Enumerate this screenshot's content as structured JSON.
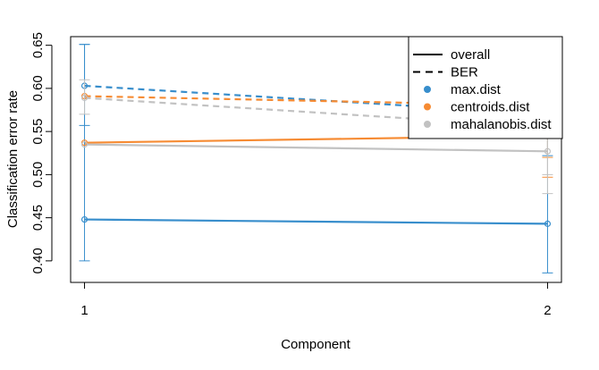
{
  "chart_data": {
    "type": "line",
    "title": "",
    "xlabel": "Component",
    "ylabel": "Classification error rate",
    "x": [
      1,
      2
    ],
    "xticks": [
      "1",
      "2"
    ],
    "xlim": [
      0.97,
      2.03
    ],
    "ylim": [
      0.375,
      0.66
    ],
    "yticks": [
      "0.40",
      "0.45",
      "0.50",
      "0.55",
      "0.60",
      "0.65"
    ],
    "yticks_values": [
      0.4,
      0.45,
      0.5,
      0.55,
      0.6,
      0.65
    ],
    "grid": false,
    "legend_position": "top-right",
    "legend": [
      {
        "label": "overall",
        "kind": "line-solid",
        "color": "#000000"
      },
      {
        "label": "BER",
        "kind": "line-dashed",
        "color": "#000000"
      },
      {
        "label": "max.dist",
        "kind": "point",
        "color": "#388ECC"
      },
      {
        "label": "centroids.dist",
        "kind": "point",
        "color": "#F68B33"
      },
      {
        "label": "mahalanobis.dist",
        "kind": "point",
        "color": "#C2C2C2"
      }
    ],
    "series": [
      {
        "name": "max.dist",
        "measure": "overall",
        "color": "#388ECC",
        "values": [
          0.448,
          0.443
        ],
        "err_low": [
          0.4,
          0.386
        ],
        "err_high": [
          0.651,
          0.626
        ]
      },
      {
        "name": "centroids.dist",
        "measure": "overall",
        "color": "#F68B33",
        "values": [
          0.537,
          0.545
        ],
        "err_low": [
          0.537,
          0.497
        ],
        "err_high": [
          0.537,
          0.64
        ]
      },
      {
        "name": "mahalanobis.dist",
        "measure": "overall",
        "color": "#C2C2C2",
        "values": [
          0.535,
          0.527
        ],
        "err_low": [
          0.535,
          0.478
        ],
        "err_high": [
          0.535,
          0.62
        ]
      },
      {
        "name": "max.dist",
        "measure": "BER",
        "color": "#388ECC",
        "values": [
          0.603,
          0.57
        ],
        "err_low": [
          0.557,
          0.522
        ],
        "err_high": [
          0.651,
          0.626
        ]
      },
      {
        "name": "centroids.dist",
        "measure": "BER",
        "color": "#F68B33",
        "values": [
          0.591,
          0.58
        ],
        "err_low": [
          0.591,
          0.52
        ],
        "err_high": [
          0.591,
          0.64
        ]
      },
      {
        "name": "mahalanobis.dist",
        "measure": "BER",
        "color": "#C2C2C2",
        "values": [
          0.589,
          0.555
        ],
        "err_low": [
          0.57,
          0.5
        ],
        "err_high": [
          0.61,
          0.6
        ]
      }
    ]
  }
}
